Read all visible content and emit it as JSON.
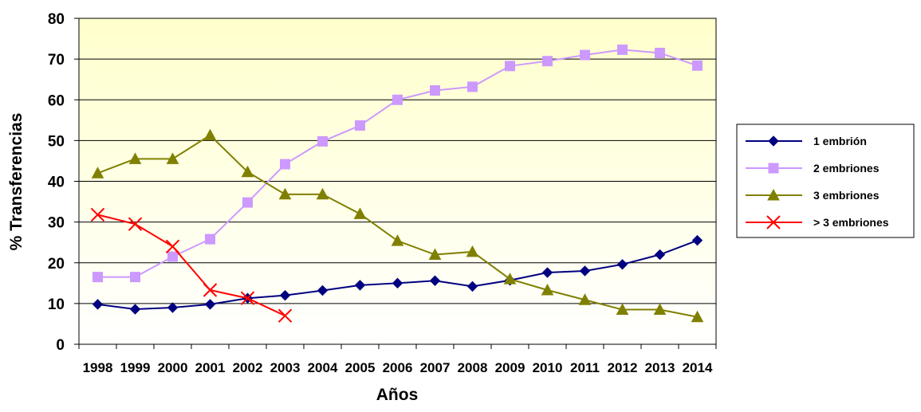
{
  "chart_data": {
    "type": "line",
    "title": "",
    "xlabel": "Años",
    "ylabel": "% Transferencias",
    "x": [
      "1998",
      "1999",
      "2000",
      "2001",
      "2002",
      "2003",
      "2004",
      "2005",
      "2006",
      "2007",
      "2008",
      "2009",
      "2010",
      "2011",
      "2012",
      "2013",
      "2014"
    ],
    "ylim": [
      0,
      80
    ],
    "yticks": [
      "0",
      "10",
      "20",
      "30",
      "40",
      "50",
      "60",
      "70",
      "80"
    ],
    "grid": "horizontal",
    "legend_position": "right",
    "series": [
      {
        "name": "1 embrión",
        "marker": "diamond",
        "color": "#000080",
        "values": [
          9.8,
          8.6,
          9.0,
          9.8,
          11.3,
          12.0,
          13.2,
          14.5,
          15.0,
          15.6,
          14.2,
          15.7,
          17.6,
          18.0,
          19.6,
          22.0,
          25.5
        ]
      },
      {
        "name": "2 embriones",
        "marker": "square",
        "color": "#cc99ff",
        "values": [
          16.5,
          16.5,
          21.5,
          25.8,
          34.8,
          44.2,
          49.8,
          53.7,
          60.0,
          62.3,
          63.2,
          68.3,
          69.5,
          71.0,
          72.3,
          71.5,
          68.4
        ]
      },
      {
        "name": "3 embriones",
        "marker": "triangle",
        "color": "#808000",
        "values": [
          42.0,
          45.5,
          45.5,
          51.3,
          42.3,
          36.8,
          36.8,
          32.0,
          25.4,
          22.0,
          22.7,
          16.0,
          13.3,
          10.9,
          8.5,
          8.5,
          6.7
        ]
      },
      {
        "name": "> 3 embriones",
        "marker": "x",
        "color": "#ff0000",
        "values": [
          31.8,
          29.5,
          24.0,
          13.3,
          11.3,
          7.0,
          null,
          null,
          null,
          null,
          null,
          null,
          null,
          null,
          null,
          null,
          null
        ]
      }
    ]
  }
}
